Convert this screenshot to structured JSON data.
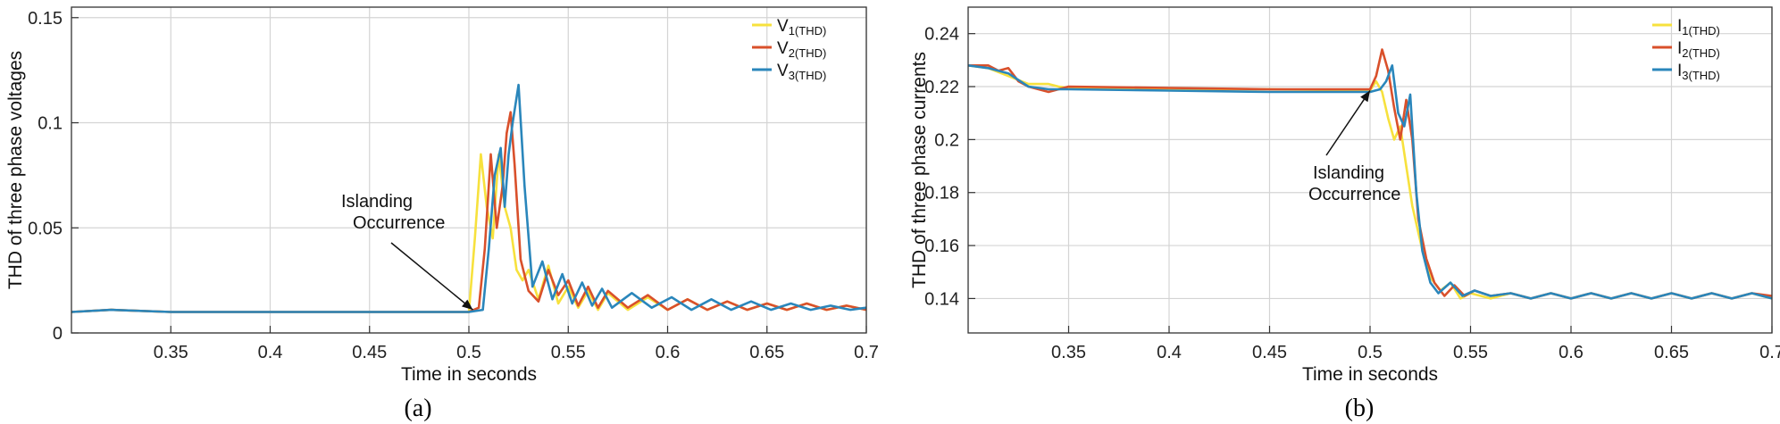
{
  "chart_data": [
    {
      "type": "line",
      "panel_label": "(a)",
      "xlabel": "Time in seconds",
      "ylabel": "THD of three phase voltages",
      "xlim": [
        0.3,
        0.7
      ],
      "ylim": [
        0,
        0.155
      ],
      "xticks": [
        0.35,
        0.4,
        0.45,
        0.5,
        0.55,
        0.6,
        0.65,
        0.7
      ],
      "xtick_labels": [
        "0.35",
        "0.4",
        "0.45",
        "0.5",
        "0.55",
        "0.6",
        "0.65",
        "0.7"
      ],
      "yticks": [
        0,
        0.05,
        0.1,
        0.15
      ],
      "ytick_labels": [
        "0",
        "0.05",
        "0.1",
        "0.15"
      ],
      "grid": true,
      "legend_position": "top-right",
      "annotation": {
        "line1": "Islanding",
        "line2": "Occurrence",
        "x": 0.502,
        "y": 0.011
      },
      "series": [
        {
          "name": "V",
          "subscript": "1(THD)",
          "color": "#f7e13d",
          "x": [
            0.3,
            0.32,
            0.35,
            0.4,
            0.45,
            0.5,
            0.503,
            0.506,
            0.509,
            0.512,
            0.515,
            0.518,
            0.521,
            0.524,
            0.527,
            0.53,
            0.535,
            0.54,
            0.545,
            0.55,
            0.555,
            0.56,
            0.565,
            0.57,
            0.58,
            0.59,
            0.6,
            0.61,
            0.62,
            0.63,
            0.64,
            0.65,
            0.66,
            0.67,
            0.68,
            0.69,
            0.7
          ],
          "y": [
            0.01,
            0.011,
            0.01,
            0.01,
            0.01,
            0.01,
            0.045,
            0.085,
            0.06,
            0.045,
            0.085,
            0.06,
            0.05,
            0.03,
            0.025,
            0.03,
            0.016,
            0.032,
            0.014,
            0.022,
            0.012,
            0.02,
            0.011,
            0.019,
            0.011,
            0.017,
            0.011,
            0.016,
            0.011,
            0.015,
            0.011,
            0.014,
            0.011,
            0.014,
            0.011,
            0.013,
            0.011
          ]
        },
        {
          "name": "V",
          "subscript": "2(THD)",
          "color": "#d9502b",
          "x": [
            0.3,
            0.32,
            0.35,
            0.4,
            0.45,
            0.5,
            0.505,
            0.508,
            0.511,
            0.514,
            0.517,
            0.519,
            0.521,
            0.523,
            0.526,
            0.53,
            0.535,
            0.54,
            0.545,
            0.55,
            0.555,
            0.56,
            0.565,
            0.57,
            0.58,
            0.59,
            0.6,
            0.61,
            0.62,
            0.63,
            0.64,
            0.65,
            0.66,
            0.67,
            0.68,
            0.69,
            0.7
          ],
          "y": [
            0.01,
            0.011,
            0.01,
            0.01,
            0.01,
            0.01,
            0.012,
            0.04,
            0.085,
            0.05,
            0.07,
            0.095,
            0.105,
            0.08,
            0.035,
            0.02,
            0.015,
            0.03,
            0.018,
            0.025,
            0.013,
            0.022,
            0.012,
            0.02,
            0.012,
            0.018,
            0.011,
            0.016,
            0.011,
            0.015,
            0.011,
            0.014,
            0.011,
            0.014,
            0.011,
            0.013,
            0.011
          ]
        },
        {
          "name": "V",
          "subscript": "3(THD)",
          "color": "#2a86bb",
          "x": [
            0.3,
            0.32,
            0.35,
            0.4,
            0.45,
            0.5,
            0.507,
            0.51,
            0.513,
            0.516,
            0.518,
            0.52,
            0.522,
            0.525,
            0.528,
            0.532,
            0.537,
            0.542,
            0.547,
            0.552,
            0.557,
            0.562,
            0.567,
            0.572,
            0.582,
            0.592,
            0.602,
            0.612,
            0.622,
            0.632,
            0.642,
            0.652,
            0.662,
            0.672,
            0.682,
            0.692,
            0.7
          ],
          "y": [
            0.01,
            0.011,
            0.01,
            0.01,
            0.01,
            0.01,
            0.011,
            0.04,
            0.075,
            0.088,
            0.06,
            0.085,
            0.1,
            0.118,
            0.07,
            0.022,
            0.034,
            0.016,
            0.028,
            0.014,
            0.024,
            0.013,
            0.021,
            0.012,
            0.019,
            0.012,
            0.017,
            0.011,
            0.016,
            0.011,
            0.015,
            0.011,
            0.014,
            0.011,
            0.013,
            0.011,
            0.012
          ]
        }
      ]
    },
    {
      "type": "line",
      "panel_label": "(b)",
      "xlabel": "Time in seconds",
      "ylabel": "THD of three phase currents",
      "xlim": [
        0.3,
        0.7
      ],
      "ylim": [
        0.127,
        0.25
      ],
      "xticks": [
        0.35,
        0.4,
        0.45,
        0.5,
        0.55,
        0.6,
        0.65,
        0.7
      ],
      "xtick_labels": [
        "0.35",
        "0.4",
        "0.45",
        "0.5",
        "0.55",
        "0.6",
        "0.65",
        "0.7"
      ],
      "yticks": [
        0.14,
        0.16,
        0.18,
        0.2,
        0.22,
        0.24
      ],
      "ytick_labels": [
        "0.14",
        "0.16",
        "0.18",
        "0.2",
        "0.22",
        "0.24"
      ],
      "grid": true,
      "legend_position": "top-right",
      "annotation": {
        "line1": "Islanding",
        "line2": "Occurrence",
        "x": 0.5,
        "y": 0.2185
      },
      "series": [
        {
          "name": "I",
          "subscript": "1(THD)",
          "color": "#f7e13d",
          "x": [
            0.3,
            0.31,
            0.32,
            0.33,
            0.34,
            0.345,
            0.35,
            0.4,
            0.45,
            0.5,
            0.503,
            0.506,
            0.509,
            0.512,
            0.515,
            0.518,
            0.521,
            0.524,
            0.527,
            0.53,
            0.535,
            0.54,
            0.545,
            0.55,
            0.56,
            0.57,
            0.58,
            0.59,
            0.6,
            0.61,
            0.62,
            0.63,
            0.64,
            0.65,
            0.66,
            0.67,
            0.68,
            0.69,
            0.7
          ],
          "y": [
            0.228,
            0.227,
            0.224,
            0.221,
            0.221,
            0.22,
            0.2195,
            0.219,
            0.219,
            0.2185,
            0.222,
            0.218,
            0.208,
            0.2,
            0.205,
            0.19,
            0.175,
            0.165,
            0.155,
            0.148,
            0.143,
            0.146,
            0.14,
            0.142,
            0.14,
            0.142,
            0.14,
            0.142,
            0.14,
            0.142,
            0.14,
            0.142,
            0.14,
            0.142,
            0.14,
            0.142,
            0.14,
            0.142,
            0.14
          ]
        },
        {
          "name": "I",
          "subscript": "2(THD)",
          "color": "#d9502b",
          "x": [
            0.3,
            0.31,
            0.315,
            0.32,
            0.325,
            0.33,
            0.34,
            0.35,
            0.4,
            0.45,
            0.5,
            0.503,
            0.506,
            0.509,
            0.512,
            0.515,
            0.518,
            0.521,
            0.524,
            0.528,
            0.532,
            0.537,
            0.542,
            0.547,
            0.552,
            0.56,
            0.57,
            0.58,
            0.59,
            0.6,
            0.61,
            0.62,
            0.63,
            0.64,
            0.65,
            0.66,
            0.67,
            0.68,
            0.69,
            0.7
          ],
          "y": [
            0.228,
            0.228,
            0.226,
            0.227,
            0.222,
            0.22,
            0.218,
            0.22,
            0.2195,
            0.219,
            0.219,
            0.224,
            0.234,
            0.226,
            0.212,
            0.2,
            0.215,
            0.2,
            0.17,
            0.155,
            0.146,
            0.141,
            0.145,
            0.141,
            0.143,
            0.141,
            0.142,
            0.14,
            0.142,
            0.14,
            0.142,
            0.14,
            0.142,
            0.14,
            0.142,
            0.14,
            0.142,
            0.14,
            0.142,
            0.141
          ]
        },
        {
          "name": "I",
          "subscript": "3(THD)",
          "color": "#2a86bb",
          "x": [
            0.3,
            0.31,
            0.32,
            0.33,
            0.34,
            0.35,
            0.4,
            0.45,
            0.5,
            0.505,
            0.508,
            0.511,
            0.514,
            0.517,
            0.52,
            0.523,
            0.526,
            0.53,
            0.534,
            0.54,
            0.546,
            0.552,
            0.56,
            0.57,
            0.58,
            0.59,
            0.6,
            0.61,
            0.62,
            0.63,
            0.64,
            0.65,
            0.66,
            0.67,
            0.68,
            0.69,
            0.7
          ],
          "y": [
            0.228,
            0.227,
            0.225,
            0.22,
            0.219,
            0.219,
            0.2185,
            0.218,
            0.218,
            0.219,
            0.222,
            0.228,
            0.21,
            0.205,
            0.217,
            0.18,
            0.158,
            0.146,
            0.142,
            0.146,
            0.141,
            0.143,
            0.141,
            0.142,
            0.14,
            0.142,
            0.14,
            0.142,
            0.14,
            0.142,
            0.14,
            0.142,
            0.14,
            0.142,
            0.14,
            0.142,
            0.14
          ]
        }
      ]
    }
  ]
}
